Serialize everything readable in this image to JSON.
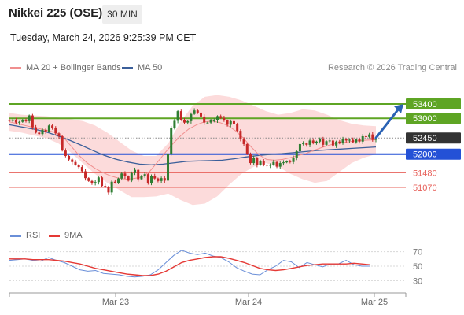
{
  "header": {
    "instrument": "Nikkei 225 (OSE)",
    "timeframe": "30 MIN",
    "datetime": "Tuesday, March 24, 2026 9:25:39 PM CET",
    "credit": "Research © 2026 Trading Central"
  },
  "legend": {
    "bollinger": "MA 20 + Bollinger Bands",
    "ma50": "MA 50",
    "rsi": "RSI",
    "rsi_ma": "9MA"
  },
  "colors": {
    "resistance": "#5ea524",
    "support": "#2451d6",
    "line_red": "#e7605a",
    "bollinger_fill": "#fbd5d5",
    "ma20": "#f08f8f",
    "ma50": "#3b5f9a",
    "candle_up": "#2e7d32",
    "candle_down": "#c62828",
    "price_tag": "#333333",
    "arrow": "#2a62b4",
    "rsi_line": "#6a8fd8",
    "rsi_ma_line": "#e53935"
  },
  "chart_data": [
    {
      "type": "candlestick",
      "title": "Nikkei 225 (OSE)",
      "timeframe": "30 MIN",
      "x_tick_labels": [
        "Mar 23",
        "Mar 24",
        "Mar 25"
      ],
      "ylim": [
        50300,
        54500
      ],
      "current_price": 52450,
      "levels": [
        {
          "value": 53400,
          "label": "53400",
          "kind": "resistance"
        },
        {
          "value": 53000,
          "label": "53000",
          "kind": "resistance"
        },
        {
          "value": 52450,
          "label": "52450",
          "kind": "current"
        },
        {
          "value": 52000,
          "label": "52000",
          "kind": "pivot"
        },
        {
          "value": 51480,
          "label": "51480",
          "kind": "support"
        },
        {
          "value": 51070,
          "label": "51070",
          "kind": "support"
        }
      ],
      "target_arrow": {
        "from": 52450,
        "to": 53400
      },
      "close": [
        52930,
        52950,
        52880,
        52900,
        52940,
        52920,
        53080,
        52750,
        52600,
        52560,
        52680,
        52630,
        52800,
        52720,
        52580,
        52500,
        52100,
        51950,
        51850,
        51780,
        51700,
        51640,
        51520,
        51330,
        51250,
        51180,
        51220,
        51350,
        51110,
        51090,
        50930,
        51230,
        51200,
        51320,
        51460,
        51380,
        51260,
        51470,
        51560,
        51300,
        51380,
        51440,
        51200,
        51390,
        51320,
        51250,
        51330,
        51260,
        52000,
        52740,
        52930,
        53200,
        52950,
        52880,
        52920,
        53120,
        53220,
        53160,
        53050,
        52880,
        52880,
        52940,
        52940,
        53060,
        53010,
        52940,
        52820,
        52920,
        52850,
        52650,
        52410,
        52280,
        52000,
        51750,
        51900,
        51700,
        51800,
        51700,
        51680,
        51700,
        51780,
        51650,
        51750,
        51770,
        51800,
        51780,
        51900,
        52080,
        52280,
        52300,
        52260,
        52380,
        52300,
        52350,
        52420,
        52260,
        52360,
        52380,
        52240,
        52350,
        52300,
        52420,
        52380,
        52400,
        52330,
        52410,
        52350,
        52500,
        52480,
        52550,
        52400,
        52450
      ],
      "ma20": [
        52900,
        52850,
        52800,
        52750,
        52700,
        52650,
        52600,
        52450,
        52200,
        51950,
        51750,
        51600,
        51480,
        51390,
        51330,
        51300,
        51320,
        51360,
        51520,
        51780,
        52050,
        52300,
        52520,
        52700,
        52820,
        52900,
        52920,
        52880,
        52800,
        52650,
        52450,
        52200,
        51980,
        51850,
        51830,
        51850,
        51900,
        51960,
        52020,
        52100,
        52180,
        52250,
        52300,
        52330,
        52360,
        52380,
        52390,
        52400
      ],
      "ma50": [
        52820,
        52760,
        52700,
        52630,
        52520,
        52400,
        52260,
        52110,
        51970,
        51860,
        51780,
        51720,
        51700,
        51720,
        51760,
        51800,
        51810,
        51820,
        51830,
        51870,
        51920,
        51960,
        51990,
        52010,
        52040,
        52070,
        52100,
        52120,
        52140,
        52160,
        52180,
        52200
      ],
      "bollinger_upper": [
        53150,
        53100,
        53080,
        53060,
        53020,
        52980,
        52920,
        52800,
        52600,
        52350,
        52100,
        51950,
        51950,
        52300,
        52900,
        53350,
        53600,
        53650,
        53600,
        53500,
        53350,
        53200,
        53100,
        53150,
        53250,
        53220,
        53100,
        52950,
        52850,
        52800,
        52780
      ],
      "bollinger_lower": [
        52650,
        52600,
        52520,
        52450,
        52300,
        52050,
        51750,
        51450,
        51200,
        51000,
        50800,
        50800,
        50820,
        50900,
        50720,
        50580,
        50620,
        50820,
        51150,
        51450,
        51650,
        51750,
        51650,
        51450,
        51300,
        51200,
        51250,
        51500,
        51750,
        51900,
        52000
      ]
    },
    {
      "type": "line",
      "title": "RSI",
      "y_tick_labels": [
        "70",
        "50",
        "30"
      ],
      "ylim": [
        20,
        80
      ],
      "series": [
        {
          "name": "RSI",
          "values": [
            58,
            59,
            60,
            58,
            57,
            62,
            58,
            55,
            50,
            45,
            43,
            44,
            40,
            39,
            38,
            36,
            35,
            36,
            38,
            45,
            55,
            65,
            72,
            68,
            66,
            68,
            64,
            62,
            56,
            48,
            43,
            39,
            38,
            45,
            50,
            58,
            56,
            48,
            55,
            52,
            49,
            53,
            53,
            58,
            52,
            50,
            50
          ]
        },
        {
          "name": "9MA",
          "values": [
            60,
            60,
            60,
            59,
            59,
            59,
            58,
            57,
            55,
            53,
            50,
            47,
            45,
            43,
            41,
            39,
            38,
            37,
            37,
            39,
            43,
            49,
            55,
            58,
            60,
            62,
            63,
            63,
            61,
            58,
            55,
            51,
            47,
            45,
            44,
            45,
            47,
            49,
            51,
            52,
            53,
            53,
            53,
            53,
            54,
            53,
            52
          ]
        }
      ]
    }
  ]
}
